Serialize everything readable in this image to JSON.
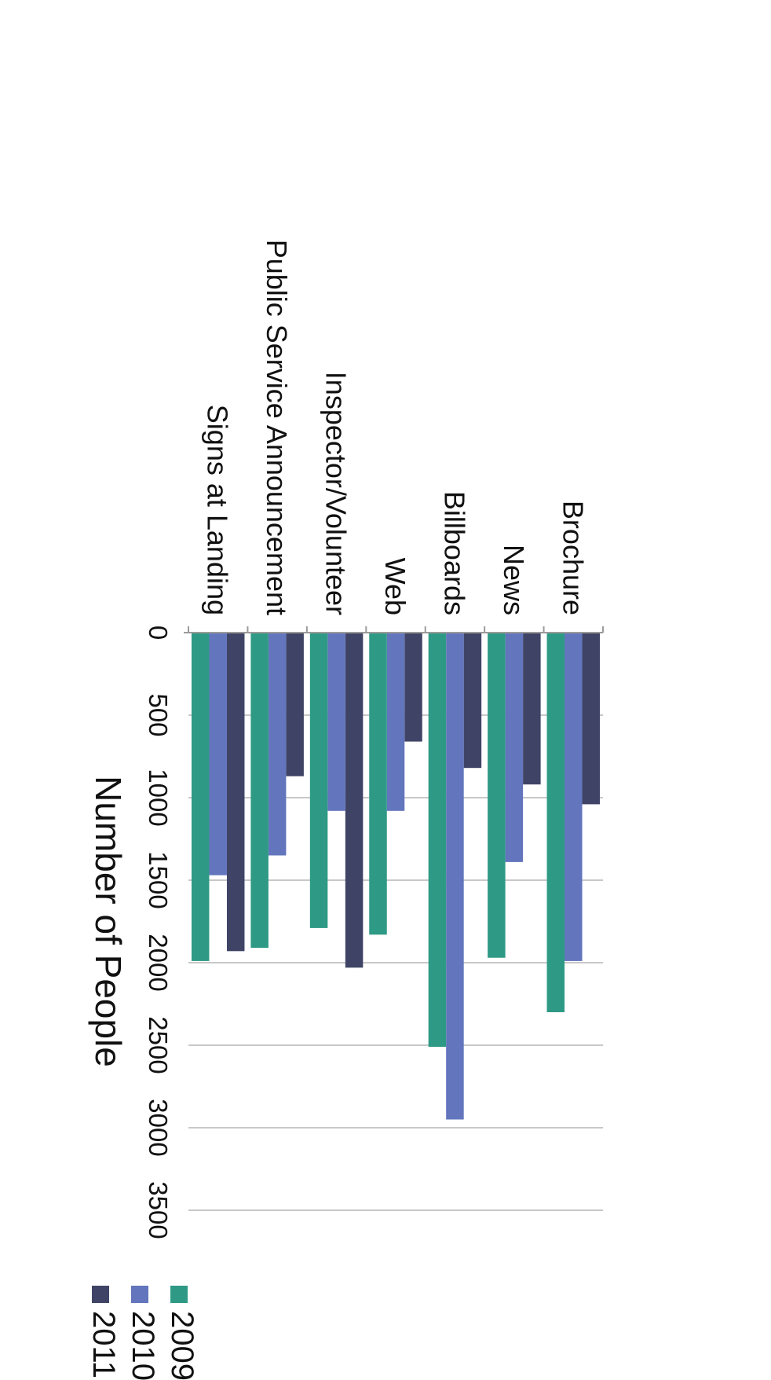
{
  "chart_data": {
    "type": "bar",
    "orientation": "horizontal",
    "categories": [
      "Brochure",
      "News",
      "Billboards",
      "Web",
      "Inspector/Volunteer",
      "Public Service Announcement",
      "Signs at Landing"
    ],
    "series": [
      {
        "name": "2011",
        "values": [
          1040,
          920,
          820,
          660,
          2030,
          870,
          1930
        ],
        "color": "#3f4466"
      },
      {
        "name": "2010",
        "values": [
          1990,
          1390,
          2950,
          1080,
          1080,
          1350,
          1470
        ],
        "color": "#6275bd"
      },
      {
        "name": "2009",
        "values": [
          2300,
          1970,
          2510,
          1830,
          1790,
          1910,
          1990
        ],
        "color": "#2e9a85"
      }
    ],
    "xlabel": "Number of People",
    "ylabel": "",
    "xlim": [
      0,
      3500
    ],
    "ticks": [
      "0",
      "500",
      "1000",
      "1500",
      "2000",
      "2500",
      "3000",
      "3500"
    ],
    "grid": true,
    "legend_position": "top-right",
    "rotation": "page rotated 90 degrees clockwise"
  }
}
